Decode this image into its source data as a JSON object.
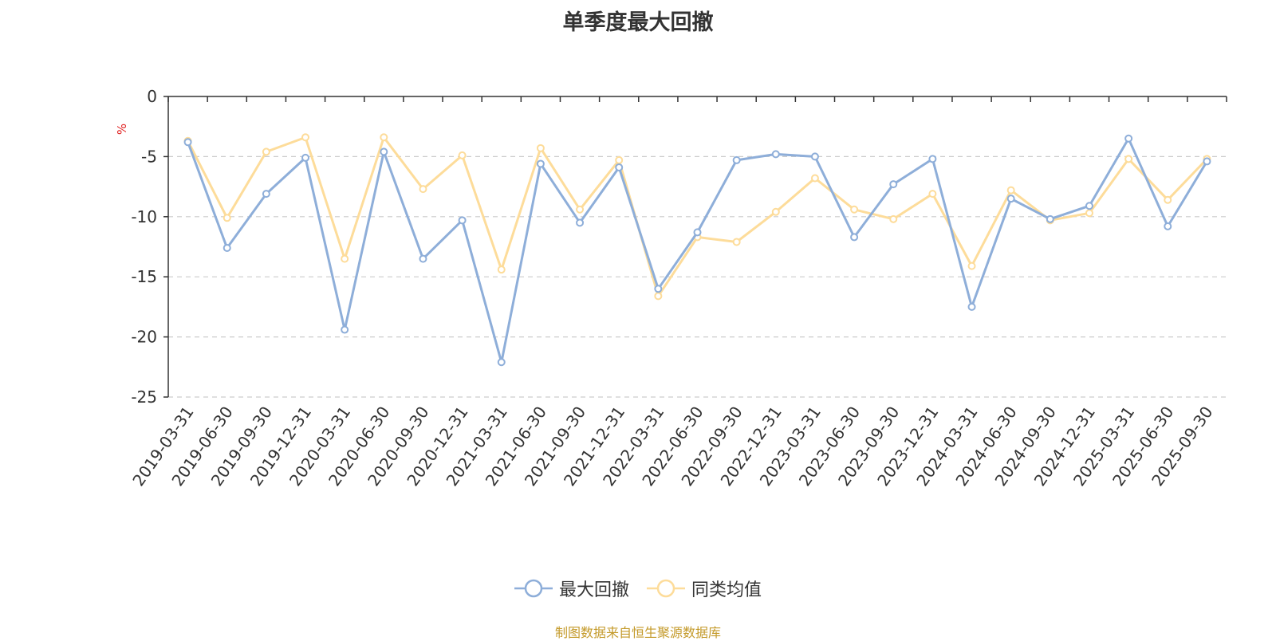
{
  "chart_data": {
    "type": "line",
    "title": "单季度最大回撤",
    "ylabel": "%",
    "xlabel": "",
    "ylim": [
      -25,
      0
    ],
    "yticks": [
      0,
      -5,
      -10,
      -15,
      -20,
      -25
    ],
    "ytick_labels": [
      "0",
      "-5",
      "-10",
      "-15",
      "-20",
      "-25"
    ],
    "grid": true,
    "legend_position": "bottom-center",
    "categories": [
      "2019-03-31",
      "2019-06-30",
      "2019-09-30",
      "2019-12-31",
      "2020-03-31",
      "2020-06-30",
      "2020-09-30",
      "2020-12-31",
      "2021-03-31",
      "2021-06-30",
      "2021-09-30",
      "2021-12-31",
      "2022-03-31",
      "2022-06-30",
      "2022-09-30",
      "2022-12-31",
      "2023-03-31",
      "2023-06-30",
      "2023-09-30",
      "2023-12-31",
      "2024-03-31",
      "2024-06-30",
      "2024-09-30",
      "2024-12-31",
      "2025-03-31",
      "2025-06-30",
      "2025-09-30"
    ],
    "series": [
      {
        "name": "最大回撤",
        "color": "#8eaed9",
        "values": [
          -3.8,
          -12.6,
          -8.1,
          -5.1,
          -19.4,
          -4.6,
          -13.5,
          -10.3,
          -22.1,
          -5.6,
          -10.5,
          -5.9,
          -16.0,
          -11.3,
          -5.3,
          -4.8,
          -5.0,
          -11.7,
          -7.3,
          -5.2,
          -17.5,
          -8.5,
          -10.2,
          -9.1,
          -3.5,
          -10.8,
          -5.4
        ]
      },
      {
        "name": "同类均值",
        "color": "#fddc9a",
        "values": [
          -3.7,
          -10.1,
          -4.6,
          -3.4,
          -13.5,
          -3.4,
          -7.7,
          -4.9,
          -14.4,
          -4.3,
          -9.4,
          -5.3,
          -16.6,
          -11.7,
          -12.1,
          -9.6,
          -6.8,
          -9.4,
          -10.2,
          -8.1,
          -14.1,
          -7.8,
          -10.3,
          -9.7,
          -5.2,
          -8.6,
          -5.2
        ]
      }
    ],
    "source_note": "制图数据来自恒生聚源数据库"
  }
}
